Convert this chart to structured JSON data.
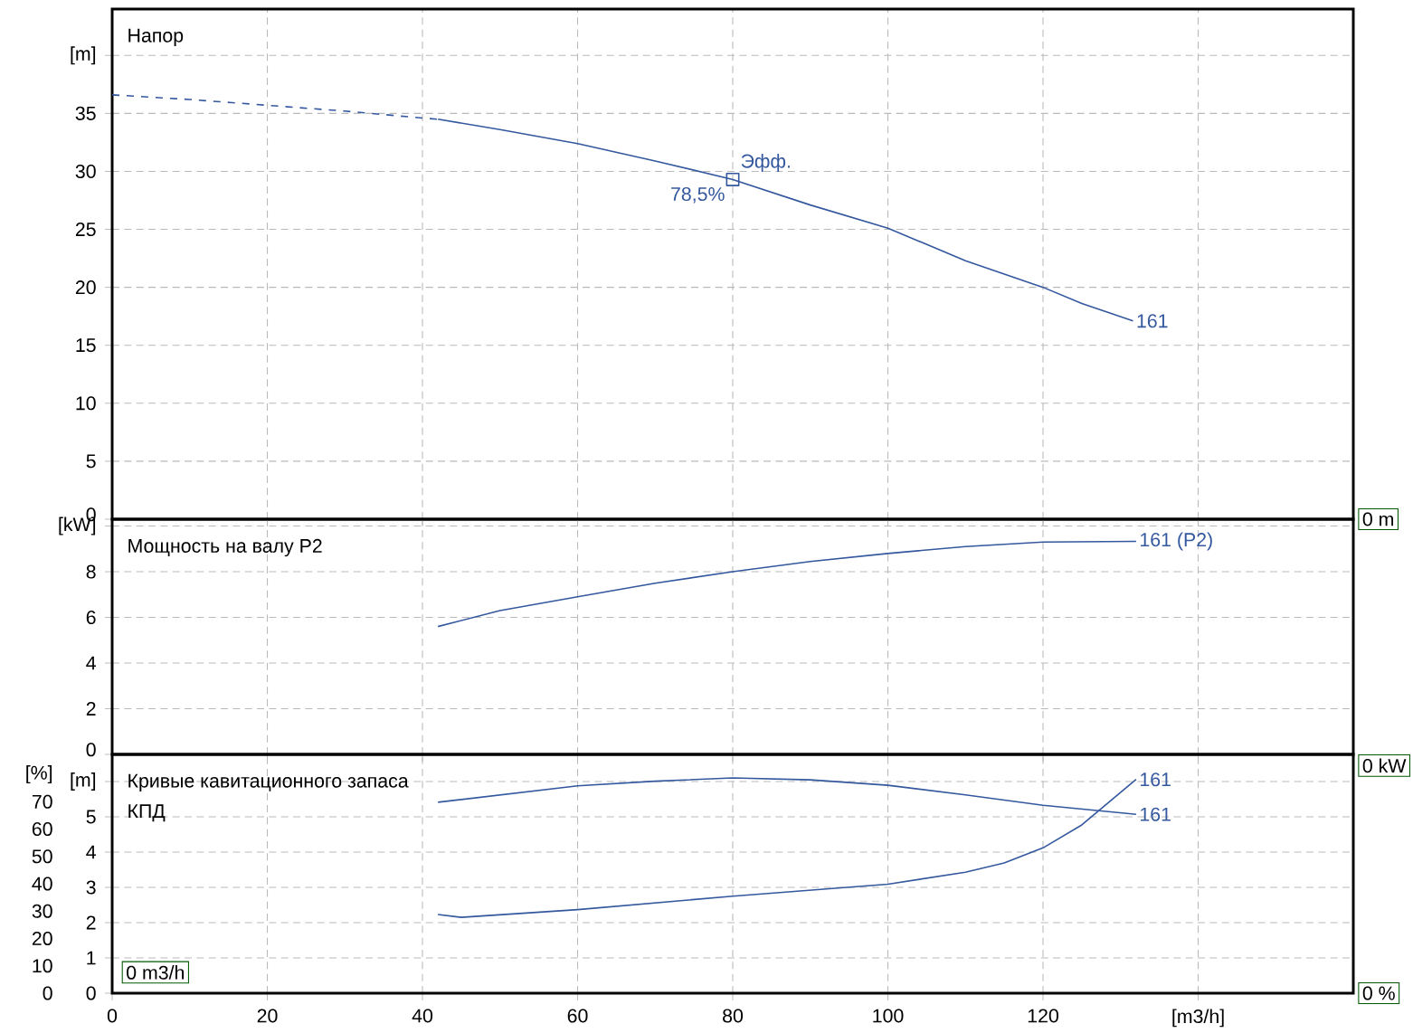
{
  "chart_data": [
    {
      "type": "line",
      "title": "Напор",
      "xlim": [
        0,
        160
      ],
      "xticks": [
        0,
        20,
        40,
        60,
        80,
        100,
        120,
        140
      ],
      "ylim": [
        0,
        44
      ],
      "yticks": [
        0,
        5,
        10,
        15,
        20,
        25,
        30,
        35,
        {
          "value": 40,
          "label": "[m]"
        }
      ],
      "grid": true,
      "tick_labels": "y",
      "series": [
        {
          "color": "#34589e",
          "line_style": "dashed",
          "x": [
            0,
            10,
            20,
            30,
            40,
            42
          ],
          "values": [
            36.6,
            36.2,
            35.7,
            35.2,
            34.6,
            34.5
          ]
        },
        {
          "name": "161",
          "color": "#34589e",
          "line_style": "solid",
          "x": [
            42,
            50,
            60,
            70,
            80,
            90,
            100,
            110,
            120,
            125,
            131.6
          ],
          "values": [
            34.5,
            33.6,
            32.4,
            30.9,
            29.3,
            27.1,
            25.1,
            22.3,
            20.0,
            18.6,
            17.1
          ]
        },
        {
          "type": "scatter",
          "marker": "square",
          "color": "#34589e",
          "x": [
            80
          ],
          "values": [
            29.3
          ]
        }
      ],
      "annotations": [
        {
          "text": "Эфф.",
          "x": 80,
          "y": 29.3
        },
        {
          "text": "78,5%",
          "x": 80,
          "y": 29.3
        },
        "0 m"
      ]
    },
    {
      "type": "line",
      "title": "Мощность на валу P2",
      "xlim": [
        0,
        160
      ],
      "xticks": [
        0,
        20,
        40,
        60,
        80,
        100,
        120,
        140
      ],
      "ylim": [
        0,
        10.3
      ],
      "yticks": [
        0,
        2,
        4,
        6,
        8,
        {
          "value": 10,
          "label": "[kW]"
        }
      ],
      "grid": true,
      "tick_labels": "y",
      "series": [
        {
          "name": "161 (P2)",
          "color": "#34589e",
          "x": [
            42,
            50,
            60,
            70,
            80,
            90,
            100,
            110,
            120,
            132
          ],
          "values": [
            5.6,
            6.3,
            6.9,
            7.5,
            8.0,
            8.45,
            8.8,
            9.1,
            9.3,
            9.33
          ]
        }
      ],
      "annotations": [
        "0 kW"
      ]
    },
    {
      "type": "line",
      "title": "Кривые кавитационного запаса",
      "subtitle": "КПД",
      "xlim": [
        0,
        160
      ],
      "xticks": [
        0,
        20,
        40,
        60,
        80,
        100,
        120,
        {
          "value": 140,
          "label": "[m3/h]"
        }
      ],
      "ylim": [
        0,
        6.77
      ],
      "yticks": [
        0,
        1,
        2,
        3,
        4,
        5,
        {
          "value": 6,
          "label": "[m]"
        }
      ],
      "y2lim": [
        0,
        87.3
      ],
      "y2ticks": [
        0,
        10,
        20,
        30,
        40,
        50,
        60,
        70,
        {
          "value": 80,
          "label": "[%]"
        }
      ],
      "grid": true,
      "series": [
        {
          "name": "161",
          "color": "#34589e",
          "x": [
            42,
            45,
            60,
            80,
            100,
            110,
            115,
            120,
            125,
            132
          ],
          "values": [
            2.23,
            2.15,
            2.37,
            2.75,
            3.09,
            3.43,
            3.69,
            4.12,
            4.77,
            6.06
          ]
        },
        {
          "name": "161",
          "axis": "y2",
          "color": "#34589e",
          "x": [
            42,
            60,
            70,
            80,
            90,
            100,
            110,
            120,
            132
          ],
          "values": [
            69.8,
            75.8,
            77.5,
            78.7,
            78.0,
            76.0,
            72.5,
            68.7,
            65.4
          ]
        }
      ],
      "annotations": [
        "0 m3/h",
        "0 %"
      ]
    }
  ]
}
